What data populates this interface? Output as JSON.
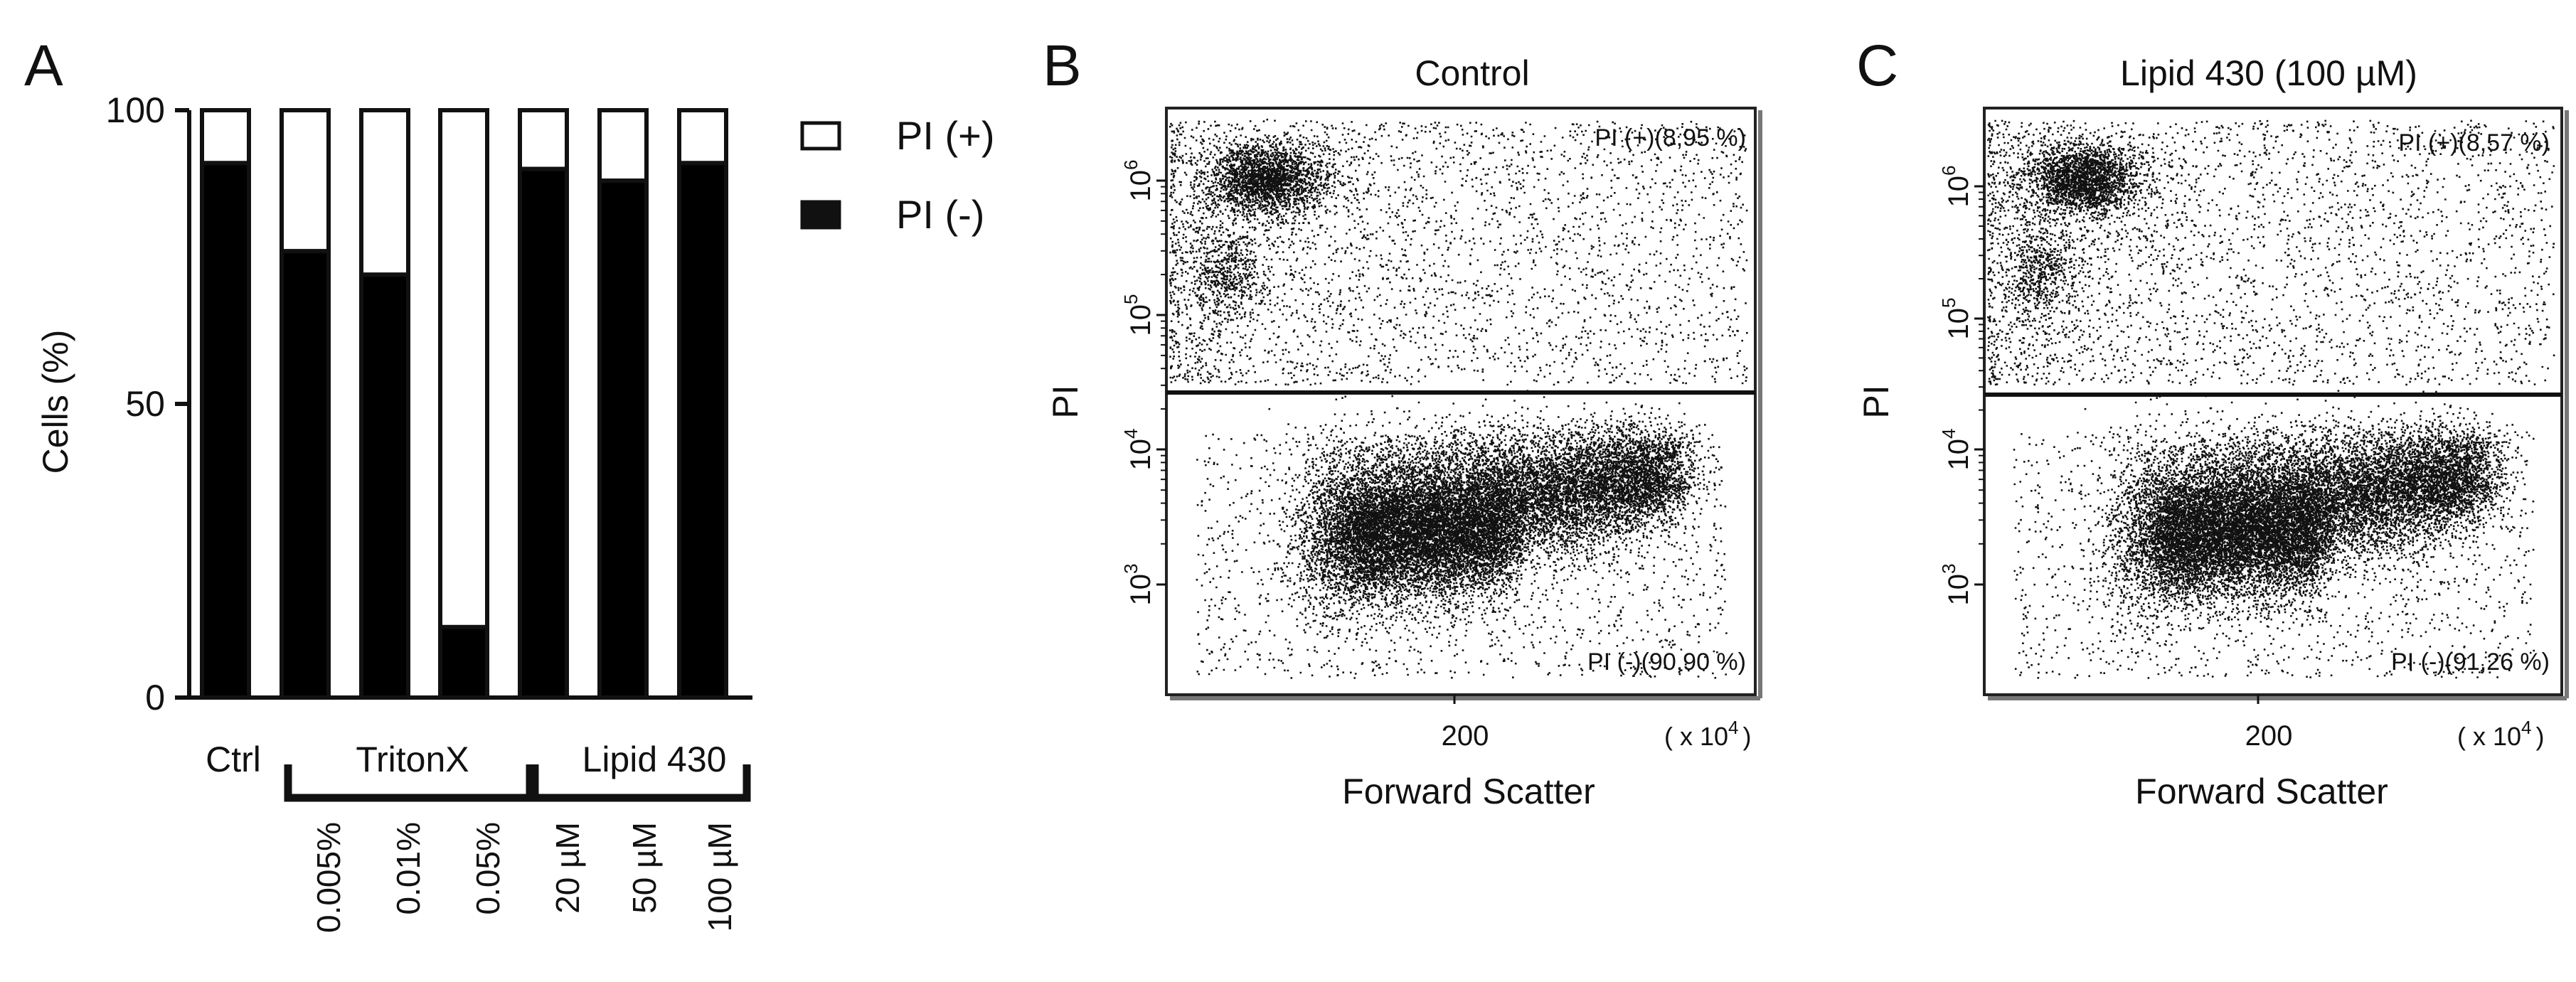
{
  "panels": {
    "A": {
      "letter": "A",
      "legend": {
        "pos_label": "PI (+)",
        "neg_label": "PI (-)"
      },
      "groups": {
        "ctrl": "Ctrl",
        "triton": "TritonX",
        "lipid": "Lipid 430"
      },
      "sublabels": [
        "0.005%",
        "0.01%",
        "0.05%",
        "20 µM",
        "50 µM",
        "100 µM"
      ]
    },
    "B": {
      "letter": "B",
      "title": "Control",
      "gate_top": "PI (+)(8,95 %)",
      "gate_bottom": "PI (-)(90,90 %)"
    },
    "C": {
      "letter": "C",
      "title": "Lipid 430 (100 µM)",
      "gate_top": "PI (+)(8,57 %)",
      "gate_bottom": "PI (-)(91,26 %)"
    }
  },
  "chart_data": [
    {
      "type": "bar",
      "stacked": true,
      "categories": [
        "Ctrl",
        "0.005%",
        "0.01%",
        "0.05%",
        "20 µM",
        "50 µM",
        "100 µM"
      ],
      "series": [
        {
          "name": "PI (-)",
          "color": "#000000",
          "values": [
            91,
            76,
            72,
            12,
            90,
            88,
            91
          ]
        },
        {
          "name": "PI (+)",
          "color": "#ffffff",
          "values": [
            9,
            24,
            28,
            88,
            10,
            12,
            9
          ]
        }
      ],
      "ylabel": "Cells (%)",
      "ylim": [
        0,
        100
      ],
      "yticks": [
        "0",
        "50",
        "100"
      ],
      "legend": "right"
    },
    {
      "type": "scatter",
      "title": "Control",
      "xlabel": "Forward Scatter",
      "ylabel": "PI",
      "yscale": "log",
      "ytick_labels": [
        "10",
        "10",
        "10",
        "10"
      ],
      "ytick_exponents": [
        "3",
        "4",
        "5",
        "6"
      ],
      "xtick_labels": [
        "200"
      ],
      "x_multiplier": "( x 10",
      "x_multiplier_exp": "4",
      "x_multiplier_close": ")",
      "gate_threshold": 25000,
      "gates": [
        {
          "name": "PI (+)",
          "percent": 8.95
        },
        {
          "name": "PI (-)",
          "percent": 90.9
        }
      ]
    },
    {
      "type": "scatter",
      "title": "Lipid 430 (100 µM)",
      "xlabel": "Forward Scatter",
      "ylabel": "PI",
      "yscale": "log",
      "ytick_labels": [
        "10",
        "10",
        "10",
        "10"
      ],
      "ytick_exponents": [
        "3",
        "4",
        "5",
        "6"
      ],
      "xtick_labels": [
        "200"
      ],
      "x_multiplier": "( x 10",
      "x_multiplier_exp": "4",
      "x_multiplier_close": ")",
      "gate_threshold": 25000,
      "gates": [
        {
          "name": "PI (+)",
          "percent": 8.57
        },
        {
          "name": "PI (-)",
          "percent": 91.26
        }
      ]
    }
  ]
}
